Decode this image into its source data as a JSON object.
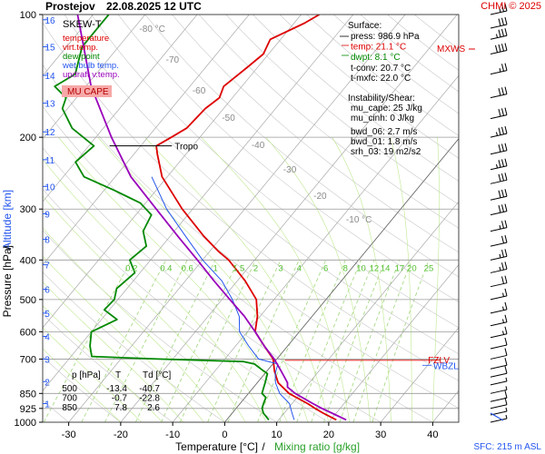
{
  "header": {
    "station": "Prostejov",
    "datetime": "22.08.2025 12 UTC",
    "credit": "CHMI © 2025"
  },
  "legend": {
    "title": "SKEW-T",
    "items": [
      {
        "label": "temperature",
        "color": "#dd0000"
      },
      {
        "label": "virt.temp.",
        "color": "#dd0000"
      },
      {
        "label": "dew point",
        "color": "#008800"
      },
      {
        "label": "wet bulb temp.",
        "color": "#2255ee"
      },
      {
        "label": "updraft v.temp.",
        "color": "#9900bb"
      }
    ],
    "badge": "MU CAPE"
  },
  "surface": {
    "title": "Surface:",
    "lines": [
      "press: 986.9 hPa",
      "temp: 21.1 °C",
      "dwpt: 8.1 °C"
    ],
    "colors": [
      "#000000",
      "#dd0000",
      "#008800"
    ],
    "tconv": "t-conv: 20.7 °C",
    "tmxfc": "t-mxfc: 22.0 °C"
  },
  "instability": {
    "title": "Instability/Shear:",
    "lines": [
      "mu_cape: 25 J/kg",
      "mu_cinh: 0 J/kg",
      "bwd_06: 2.7 m/s",
      "bwd_01: 1.8 m/s",
      "srh_03: 19 m2/s2"
    ]
  },
  "table": {
    "headers": [
      "p [hPa]",
      "T",
      "Td [°C]"
    ],
    "rows": [
      [
        "500",
        "-13.4",
        "-40.7"
      ],
      [
        "700",
        "-0.7",
        "-22.8"
      ],
      [
        "850",
        "7.8",
        "2.6"
      ]
    ]
  },
  "markers": {
    "tropo": "Tropo",
    "mxws": "MXWS",
    "fzl": "FZLV",
    "wbzl": "WBZL"
  },
  "footer": {
    "sfc": "SFC: 215 m ASL"
  },
  "chart_data": {
    "type": "line",
    "title": "Prostejov 22.08.2025 12 UTC",
    "xlabel": "Temperature [°C]",
    "xlabel2": "Mixing ratio [g/kg]",
    "ylabel": "Pressure [hPa]",
    "ylabel2": "Altitude [km]",
    "xlim": [
      -35,
      45
    ],
    "ylim": [
      1000,
      100
    ],
    "x_ticks": [
      -30,
      -20,
      -10,
      0,
      10,
      20,
      30,
      40
    ],
    "p_ticks": [
      100,
      200,
      300,
      400,
      500,
      600,
      700,
      850,
      925,
      1000
    ],
    "km_ticks": [
      {
        "km": 1,
        "p": 900
      },
      {
        "km": 2,
        "p": 795
      },
      {
        "km": 3,
        "p": 700
      },
      {
        "km": 4,
        "p": 616
      },
      {
        "km": 5,
        "p": 540
      },
      {
        "km": 6,
        "p": 472
      },
      {
        "km": 7,
        "p": 411
      },
      {
        "km": 8,
        "p": 356
      },
      {
        "km": 9,
        "p": 308
      },
      {
        "km": 10,
        "p": 264
      },
      {
        "km": 11,
        "p": 227
      },
      {
        "km": 12,
        "p": 194
      },
      {
        "km": 13,
        "p": 165
      },
      {
        "km": 14,
        "p": 141
      },
      {
        "km": 15,
        "p": 120
      },
      {
        "km": 16,
        "p": 103
      }
    ],
    "isotherm_labels": [
      {
        "t": -80,
        "label": "-80 °C"
      },
      {
        "t": -70,
        "label": "-70"
      },
      {
        "t": -60,
        "label": "-60"
      },
      {
        "t": -50,
        "label": "-50"
      },
      {
        "t": -40,
        "label": "-40"
      },
      {
        "t": -30,
        "label": "-30"
      },
      {
        "t": -20,
        "label": "-20"
      },
      {
        "t": -10,
        "label": "-10 °C"
      }
    ],
    "mixing_ratio_labels": [
      "0.2",
      "0.4",
      "0.6",
      "1",
      "1.5",
      "2",
      "3",
      "4",
      "6",
      "8",
      "10",
      "12",
      "14",
      "17",
      "20",
      "25"
    ],
    "mixing_ratio_values": [
      0.2,
      0.4,
      0.6,
      1,
      1.5,
      2,
      3,
      4,
      6,
      8,
      10,
      12,
      14,
      17,
      20,
      25
    ],
    "series": [
      {
        "name": "temperature",
        "color": "#dd0000",
        "points": [
          [
            986.9,
            21.1
          ],
          [
            950,
            17.5
          ],
          [
            925,
            15.2
          ],
          [
            900,
            13.0
          ],
          [
            850,
            7.8
          ],
          [
            800,
            4.0
          ],
          [
            750,
            1.5
          ],
          [
            700,
            -0.7
          ],
          [
            650,
            -4.5
          ],
          [
            600,
            -8.5
          ],
          [
            550,
            -10.5
          ],
          [
            500,
            -13.4
          ],
          [
            450,
            -18.5
          ],
          [
            400,
            -25.0
          ],
          [
            380,
            -28.5
          ],
          [
            350,
            -33.5
          ],
          [
            300,
            -42.0
          ],
          [
            250,
            -51.0
          ],
          [
            220,
            -55.5
          ],
          [
            210,
            -57.0
          ],
          [
            200,
            -55.5
          ],
          [
            190,
            -54.0
          ],
          [
            170,
            -53.5
          ],
          [
            160,
            -52.5
          ],
          [
            150,
            -53.5
          ],
          [
            135,
            -52.0
          ],
          [
            125,
            -51.0
          ],
          [
            115,
            -52.0
          ],
          [
            105,
            -48.0
          ],
          [
            100,
            -46.5
          ]
        ]
      },
      {
        "name": "dew point",
        "color": "#008800",
        "points": [
          [
            986.9,
            8.1
          ],
          [
            950,
            6.0
          ],
          [
            925,
            5.0
          ],
          [
            900,
            4.5
          ],
          [
            870,
            4.0
          ],
          [
            850,
            2.6
          ],
          [
            800,
            1.5
          ],
          [
            760,
            0.5
          ],
          [
            740,
            -1.5
          ],
          [
            720,
            -3.5
          ],
          [
            710,
            -6.0
          ],
          [
            700,
            -22.8
          ],
          [
            690,
            -36.0
          ],
          [
            650,
            -38.0
          ],
          [
            600,
            -40.0
          ],
          [
            560,
            -37.0
          ],
          [
            530,
            -41.0
          ],
          [
            500,
            -40.7
          ],
          [
            470,
            -42.0
          ],
          [
            430,
            -41.0
          ],
          [
            400,
            -44.0
          ],
          [
            370,
            -43.0
          ],
          [
            340,
            -46.0
          ],
          [
            310,
            -47.0
          ],
          [
            290,
            -51.0
          ],
          [
            270,
            -58.0
          ],
          [
            250,
            -66.0
          ],
          [
            230,
            -70.0
          ],
          [
            210,
            -69.0
          ],
          [
            190,
            -76.0
          ],
          [
            170,
            -81.0
          ],
          [
            160,
            -82.0
          ],
          [
            150,
            -86.0
          ],
          [
            140,
            -84.0
          ],
          [
            120,
            -87.0
          ],
          [
            100,
            -87.0
          ]
        ]
      },
      {
        "name": "wet bulb temp.",
        "color": "#2255ee",
        "points": [
          [
            986.9,
            13.0
          ],
          [
            950,
            11.5
          ],
          [
            900,
            9.5
          ],
          [
            850,
            6.0
          ],
          [
            800,
            3.5
          ],
          [
            760,
            2.0
          ],
          [
            720,
            1.0
          ],
          [
            700,
            -3.5
          ],
          [
            650,
            -7.5
          ],
          [
            600,
            -11.5
          ],
          [
            550,
            -14.0
          ],
          [
            500,
            -18.0
          ],
          [
            450,
            -23.0
          ],
          [
            400,
            -30.0
          ],
          [
            350,
            -37.0
          ],
          [
            300,
            -45.0
          ],
          [
            250,
            -53.0
          ]
        ]
      },
      {
        "name": "updraft v.temp.",
        "color": "#9900bb",
        "points": [
          [
            986.9,
            23.0
          ],
          [
            950,
            19.2
          ],
          [
            925,
            16.5
          ],
          [
            900,
            14.0
          ],
          [
            870,
            11.0
          ],
          [
            850,
            9.0
          ],
          [
            820,
            6.5
          ],
          [
            800,
            5.8
          ],
          [
            750,
            2.8
          ],
          [
            700,
            -0.5
          ],
          [
            650,
            -4.5
          ],
          [
            600,
            -8.5
          ],
          [
            550,
            -13.0
          ],
          [
            500,
            -18.5
          ],
          [
            450,
            -24.5
          ],
          [
            400,
            -31.0
          ],
          [
            350,
            -38.5
          ],
          [
            300,
            -47.0
          ],
          [
            250,
            -57.0
          ],
          [
            200,
            -67.0
          ],
          [
            150,
            -79.0
          ],
          [
            100,
            -93.0
          ]
        ]
      }
    ],
    "cape_region": {
      "name": "MU CAPE",
      "p_from": 870,
      "p_to": 720
    },
    "tropopause": {
      "p": 210,
      "label": "Tropo"
    },
    "freezing_level": {
      "p": 705,
      "label": "FZLV"
    },
    "wet_bulb_zero": {
      "p": 725,
      "label": "WBZL"
    },
    "wind_levels": [
      {
        "p": 1000,
        "speed_kt": 5
      },
      {
        "p": 960,
        "speed_kt": 5
      },
      {
        "p": 925,
        "speed_kt": 10
      },
      {
        "p": 890,
        "speed_kt": 10
      },
      {
        "p": 850,
        "speed_kt": 5
      },
      {
        "p": 810,
        "speed_kt": 5
      },
      {
        "p": 775,
        "speed_kt": 10
      },
      {
        "p": 740,
        "speed_kt": 10
      },
      {
        "p": 700,
        "speed_kt": 10
      },
      {
        "p": 660,
        "speed_kt": 10
      },
      {
        "p": 620,
        "speed_kt": 15
      },
      {
        "p": 580,
        "speed_kt": 15
      },
      {
        "p": 540,
        "speed_kt": 15
      },
      {
        "p": 500,
        "speed_kt": 15
      },
      {
        "p": 465,
        "speed_kt": 20
      },
      {
        "p": 430,
        "speed_kt": 25
      },
      {
        "p": 400,
        "speed_kt": 25
      },
      {
        "p": 370,
        "speed_kt": 20
      },
      {
        "p": 340,
        "speed_kt": 25
      },
      {
        "p": 310,
        "speed_kt": 30
      },
      {
        "p": 285,
        "speed_kt": 30
      },
      {
        "p": 260,
        "speed_kt": 30
      },
      {
        "p": 240,
        "speed_kt": 35
      },
      {
        "p": 220,
        "speed_kt": 30
      },
      {
        "p": 200,
        "speed_kt": 35
      },
      {
        "p": 180,
        "speed_kt": 30
      },
      {
        "p": 160,
        "speed_kt": 30
      },
      {
        "p": 140,
        "speed_kt": 25
      },
      {
        "p": 125,
        "speed_kt": 40
      },
      {
        "p": 115,
        "speed_kt": 35
      },
      {
        "p": 108,
        "speed_kt": 30
      },
      {
        "p": 100,
        "speed_kt": 25
      }
    ]
  }
}
